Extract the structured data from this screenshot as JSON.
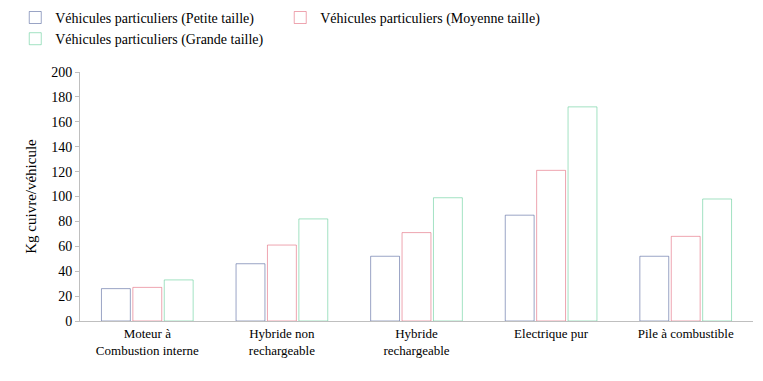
{
  "chart_data": {
    "type": "bar",
    "y_label": "Kg cuivre/véhicule",
    "categories": [
      "Moteur à Combustion interne",
      "Hybride non rechargeable",
      "Hybride rechargeable",
      "Electrique pur",
      "Pile à combustible"
    ],
    "series": [
      {
        "name": "Véhicules particuliers (Petite taille)",
        "color": "#34488a",
        "values": [
          26,
          46,
          52,
          85,
          52
        ]
      },
      {
        "name": "Véhicules particuliers (Moyenne taille)",
        "color": "#dc4a60",
        "values": [
          27,
          61,
          71,
          121,
          68
        ]
      },
      {
        "name": "Véhicules particuliers (Grande taille)",
        "color": "#46c487",
        "values": [
          33,
          82,
          99,
          172,
          98
        ]
      }
    ],
    "ylim": [
      0,
      200
    ],
    "yticks": [
      0,
      20,
      40,
      60,
      80,
      100,
      120,
      140,
      160,
      180,
      200
    ],
    "grid": false,
    "legend": "top left"
  }
}
